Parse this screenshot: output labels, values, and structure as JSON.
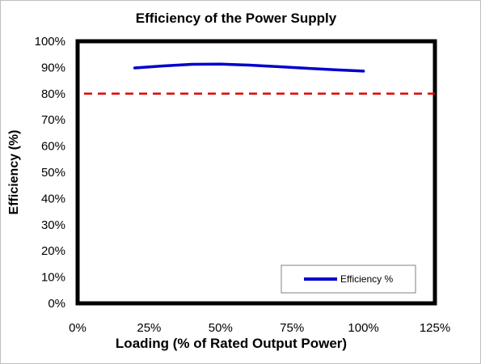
{
  "chart_data": {
    "type": "line",
    "title": "Efficiency of the Power Supply",
    "xlabel": "Loading (% of Rated Output Power)",
    "ylabel": "Efficiency (%)",
    "xlim": [
      0,
      125
    ],
    "ylim": [
      0,
      100
    ],
    "x_ticks": [
      {
        "value": 0,
        "label": "0%"
      },
      {
        "value": 25,
        "label": "25%"
      },
      {
        "value": 50,
        "label": "50%"
      },
      {
        "value": 75,
        "label": "75%"
      },
      {
        "value": 100,
        "label": "100%"
      },
      {
        "value": 125,
        "label": "125%"
      }
    ],
    "y_ticks": [
      {
        "value": 0,
        "label": "0%"
      },
      {
        "value": 10,
        "label": "10%"
      },
      {
        "value": 20,
        "label": "20%"
      },
      {
        "value": 30,
        "label": "30%"
      },
      {
        "value": 40,
        "label": "40%"
      },
      {
        "value": 50,
        "label": "50%"
      },
      {
        "value": 60,
        "label": "60%"
      },
      {
        "value": 70,
        "label": "70%"
      },
      {
        "value": 80,
        "label": "80%"
      },
      {
        "value": 90,
        "label": "90%"
      },
      {
        "value": 100,
        "label": "100%"
      }
    ],
    "series": [
      {
        "name": "Efficiency %",
        "color": "#0000cc",
        "x": [
          20,
          30,
          40,
          50,
          60,
          70,
          80,
          90,
          100
        ],
        "y": [
          89.8,
          90.6,
          91.2,
          91.3,
          90.9,
          90.3,
          89.7,
          89.1,
          88.6
        ]
      }
    ],
    "reference_line": {
      "y": 80,
      "color": "#e00000",
      "style": "dashed"
    },
    "grid": false,
    "legend_position": "bottom-right"
  }
}
